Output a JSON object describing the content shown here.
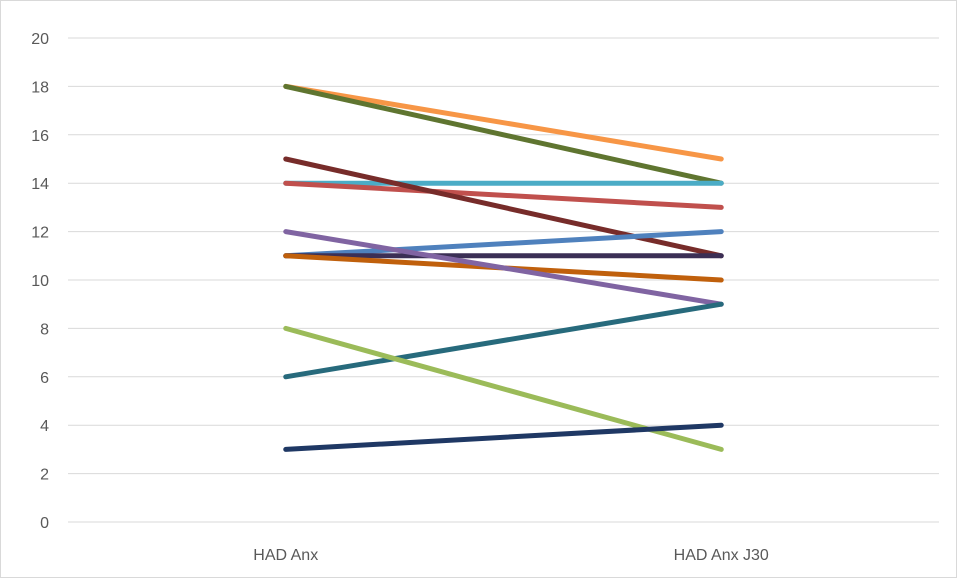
{
  "chart_data": {
    "type": "line",
    "title": "",
    "xlabel": "",
    "ylabel": "",
    "categories": [
      "HAD Anx",
      "HAD Anx J30"
    ],
    "ylim": [
      0,
      20
    ],
    "yticks": [
      0,
      2,
      4,
      6,
      8,
      10,
      12,
      14,
      16,
      18,
      20
    ],
    "grid": true,
    "legend": "none",
    "series": [
      {
        "values": [
          18,
          15
        ],
        "color": "#f79646"
      },
      {
        "values": [
          18,
          14
        ],
        "color": "#5f7530"
      },
      {
        "values": [
          14,
          14
        ],
        "color": "#4bacc6"
      },
      {
        "values": [
          14,
          13
        ],
        "color": "#c0504d"
      },
      {
        "values": [
          15,
          11
        ],
        "color": "#772c2a"
      },
      {
        "values": [
          11,
          12
        ],
        "color": "#4f81bd"
      },
      {
        "values": [
          11,
          11
        ],
        "color": "#3b2f55"
      },
      {
        "values": [
          11,
          10
        ],
        "color": "#c0600c"
      },
      {
        "values": [
          12,
          9
        ],
        "color": "#8064a2"
      },
      {
        "values": [
          6,
          9
        ],
        "color": "#276a7c"
      },
      {
        "values": [
          8,
          3
        ],
        "color": "#9bbb59"
      },
      {
        "values": [
          3,
          4
        ],
        "color": "#1f3864"
      }
    ]
  }
}
